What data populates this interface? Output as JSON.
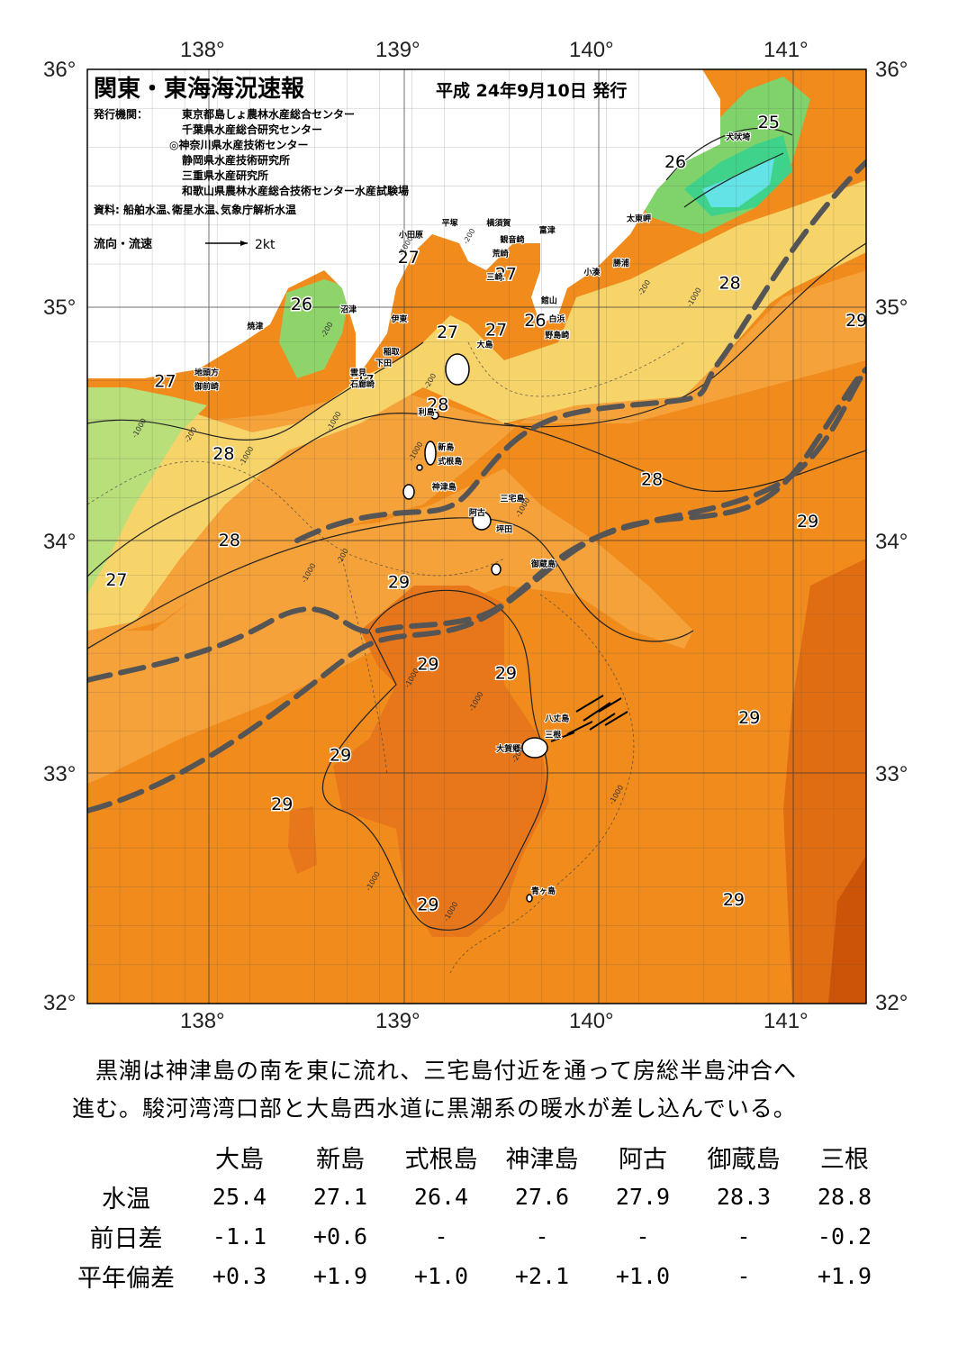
{
  "header": {
    "title": "関東・東海海況速報",
    "issue_date": "平成 24年9月10日 発行",
    "publisher_label": "発行機関：",
    "publishers": [
      "東京都島しょ農林水産総合センター",
      "千葉県水産総合研究センター",
      "◎神奈川県水産技術センター",
      "静岡県水産技術研究所",
      "三重県水産研究所",
      "和歌山県農林水産総合技術センター水産試験場"
    ],
    "sources": "資料: 船舶水温､衛星水温､気象庁解析水温",
    "current_legend_label": "流向・流速",
    "current_legend_scale": "2kt"
  },
  "axes": {
    "lon_labels": [
      "138°",
      "139°",
      "140°",
      "141°"
    ],
    "lat_labels": [
      "36°",
      "35°",
      "34°",
      "33°",
      "32°"
    ]
  },
  "map_data": {
    "region": "関東・東海",
    "lon_range": [
      137.5,
      141.5
    ],
    "lat_range": [
      32,
      36
    ],
    "temperature_labels": [
      {
        "value": "25",
        "lon": 141.0,
        "lat": 35.75
      },
      {
        "value": "26",
        "lon": 140.52,
        "lat": 35.58
      },
      {
        "value": "27",
        "lon": 139.15,
        "lat": 35.17
      },
      {
        "value": "27",
        "lon": 139.65,
        "lat": 35.1
      },
      {
        "value": "28",
        "lon": 140.8,
        "lat": 35.06
      },
      {
        "value": "26",
        "lon": 138.6,
        "lat": 34.97
      },
      {
        "value": "27",
        "lon": 139.35,
        "lat": 34.85
      },
      {
        "value": "26",
        "lon": 139.8,
        "lat": 34.9
      },
      {
        "value": "27",
        "lon": 139.6,
        "lat": 34.86
      },
      {
        "value": "29",
        "lon": 141.45,
        "lat": 34.9
      },
      {
        "value": "27",
        "lon": 137.9,
        "lat": 34.64
      },
      {
        "value": "27",
        "lon": 138.92,
        "lat": 34.64
      },
      {
        "value": "28",
        "lon": 139.3,
        "lat": 34.54
      },
      {
        "value": "28",
        "lon": 138.2,
        "lat": 34.33
      },
      {
        "value": "28",
        "lon": 140.4,
        "lat": 34.22
      },
      {
        "value": "29",
        "lon": 141.2,
        "lat": 34.04
      },
      {
        "value": "28",
        "lon": 138.23,
        "lat": 33.96
      },
      {
        "value": "27",
        "lon": 137.65,
        "lat": 33.79
      },
      {
        "value": "29",
        "lon": 139.1,
        "lat": 33.78
      },
      {
        "value": "29",
        "lon": 139.25,
        "lat": 33.43
      },
      {
        "value": "29",
        "lon": 139.65,
        "lat": 33.39
      },
      {
        "value": "29",
        "lon": 140.9,
        "lat": 33.2
      },
      {
        "value": "29",
        "lon": 138.8,
        "lat": 33.04
      },
      {
        "value": "29",
        "lon": 138.5,
        "lat": 32.83
      },
      {
        "value": "29",
        "lon": 139.25,
        "lat": 32.4
      },
      {
        "value": "29",
        "lon": 140.82,
        "lat": 32.42
      }
    ],
    "place_labels": [
      {
        "name": "犬吠埼",
        "lon": 140.78,
        "lat": 35.7
      },
      {
        "name": "太東岬",
        "lon": 140.27,
        "lat": 35.35
      },
      {
        "name": "勝浦",
        "lon": 140.2,
        "lat": 35.16
      },
      {
        "name": "小湊",
        "lon": 140.05,
        "lat": 35.12
      },
      {
        "name": "横須賀",
        "lon": 139.55,
        "lat": 35.33
      },
      {
        "name": "平塚",
        "lon": 139.32,
        "lat": 35.33
      },
      {
        "name": "観音崎",
        "lon": 139.62,
        "lat": 35.26
      },
      {
        "name": "富津",
        "lon": 139.82,
        "lat": 35.3
      },
      {
        "name": "荒崎",
        "lon": 139.58,
        "lat": 35.2
      },
      {
        "name": "小田原",
        "lon": 139.1,
        "lat": 35.28
      },
      {
        "name": "三崎",
        "lon": 139.55,
        "lat": 35.1
      },
      {
        "name": "館山",
        "lon": 139.83,
        "lat": 35.0
      },
      {
        "name": "沼津",
        "lon": 138.8,
        "lat": 34.96
      },
      {
        "name": "伊東",
        "lon": 139.06,
        "lat": 34.92
      },
      {
        "name": "白浜",
        "lon": 139.87,
        "lat": 34.92
      },
      {
        "name": "野島崎",
        "lon": 139.85,
        "lat": 34.85
      },
      {
        "name": "焼津",
        "lon": 138.32,
        "lat": 34.89
      },
      {
        "name": "大島",
        "lon": 139.5,
        "lat": 34.81
      },
      {
        "name": "稲取",
        "lon": 139.02,
        "lat": 34.78
      },
      {
        "name": "下田",
        "lon": 138.98,
        "lat": 34.73
      },
      {
        "name": "雲見",
        "lon": 138.85,
        "lat": 34.69
      },
      {
        "name": "石廊崎",
        "lon": 138.85,
        "lat": 34.64
      },
      {
        "name": "地頭方",
        "lon": 138.05,
        "lat": 34.69
      },
      {
        "name": "御前崎",
        "lon": 138.05,
        "lat": 34.63
      },
      {
        "name": "利島",
        "lon": 139.2,
        "lat": 34.52
      },
      {
        "name": "新島",
        "lon": 139.3,
        "lat": 34.37
      },
      {
        "name": "式根島",
        "lon": 139.3,
        "lat": 34.31
      },
      {
        "name": "神津島",
        "lon": 139.27,
        "lat": 34.2
      },
      {
        "name": "三宅島",
        "lon": 139.62,
        "lat": 34.15
      },
      {
        "name": "阿古",
        "lon": 139.46,
        "lat": 34.09
      },
      {
        "name": "坪田",
        "lon": 139.6,
        "lat": 34.02
      },
      {
        "name": "御蔵島",
        "lon": 139.78,
        "lat": 33.87
      },
      {
        "name": "八丈島",
        "lon": 139.85,
        "lat": 33.21
      },
      {
        "name": "三根",
        "lon": 139.85,
        "lat": 33.14
      },
      {
        "name": "大賀郷",
        "lon": 139.6,
        "lat": 33.08
      },
      {
        "name": "青ヶ島",
        "lon": 139.78,
        "lat": 32.47
      }
    ],
    "depth_labels": [
      {
        "value": "-200",
        "lon": 139.45,
        "lat": 35.25
      },
      {
        "value": "-1000",
        "lon": 139.12,
        "lat": 35.2
      },
      {
        "value": "-200",
        "lon": 140.35,
        "lat": 35.03
      },
      {
        "value": "-1000",
        "lon": 140.6,
        "lat": 34.98
      },
      {
        "value": "-200",
        "lon": 138.72,
        "lat": 34.85
      },
      {
        "value": "-200",
        "lon": 139.25,
        "lat": 34.63
      },
      {
        "value": "-1000",
        "lon": 138.75,
        "lat": 34.45
      },
      {
        "value": "-1000",
        "lon": 137.75,
        "lat": 34.42
      },
      {
        "value": "-200",
        "lon": 138.02,
        "lat": 34.4
      },
      {
        "value": "-1000",
        "lon": 138.3,
        "lat": 34.3
      },
      {
        "value": "-1000",
        "lon": 139.17,
        "lat": 34.32
      },
      {
        "value": "-1000",
        "lon": 139.72,
        "lat": 34.08
      },
      {
        "value": "-200",
        "lon": 138.8,
        "lat": 33.88
      },
      {
        "value": "-1000",
        "lon": 138.62,
        "lat": 33.8
      },
      {
        "value": "-1000",
        "lon": 139.15,
        "lat": 33.35
      },
      {
        "value": "-1000",
        "lon": 139.48,
        "lat": 33.25
      },
      {
        "value": "-200",
        "lon": 139.7,
        "lat": 33.03
      },
      {
        "value": "-1000",
        "lon": 140.2,
        "lat": 32.85
      },
      {
        "value": "-1000",
        "lon": 138.95,
        "lat": 32.48
      },
      {
        "value": "-1000",
        "lon": 139.35,
        "lat": 32.35
      }
    ],
    "kuroshio_axis_present": true
  },
  "summary": [
    "　黒潮は神津島の南を東に流れ、三宅島付近を通って房総半島沖合へ",
    "進む。駿河湾湾口部と大島西水道に黒潮系の暖水が差し込んでいる。"
  ],
  "table": {
    "columns": [
      "大島",
      "新島",
      "式根島",
      "神津島",
      "阿古",
      "御蔵島",
      "三根"
    ],
    "rows": [
      {
        "label": "水温",
        "values": [
          "25.4",
          "27.1",
          "26.4",
          "27.6",
          "27.9",
          "28.3",
          "28.8"
        ]
      },
      {
        "label": "前日差",
        "values": [
          "-1.1",
          "+0.6",
          "-",
          "-",
          "-",
          "-",
          "-0.2"
        ]
      },
      {
        "label": "平年偏差",
        "values": [
          "+0.3",
          "+1.9",
          "+1.0",
          "+2.1",
          "+1.0",
          "-",
          "+1.9"
        ]
      }
    ]
  }
}
